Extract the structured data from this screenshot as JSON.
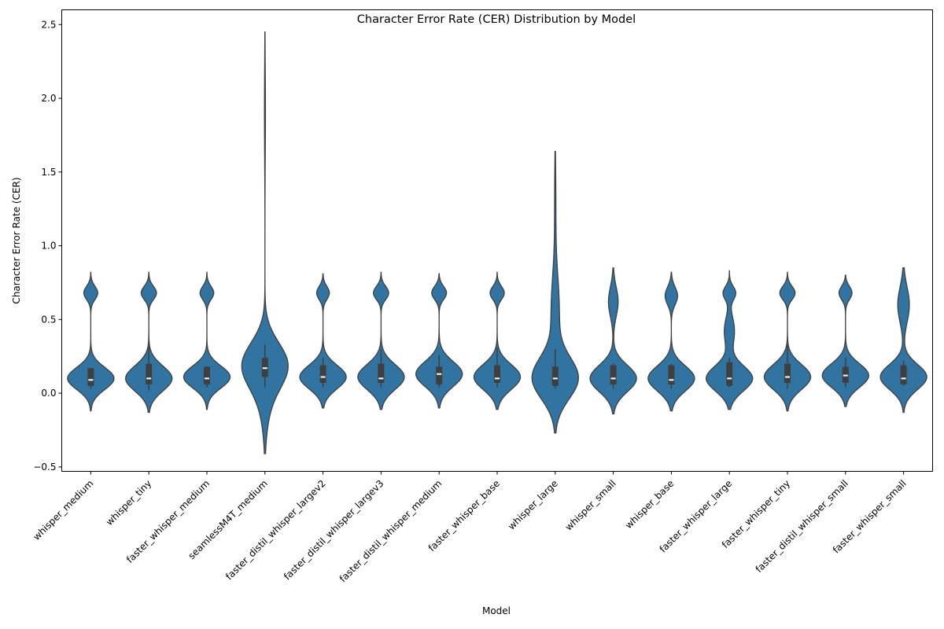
{
  "chart_data": {
    "type": "violin",
    "title": "Character Error Rate (CER) Distribution by Model",
    "xlabel": "Model",
    "ylabel": "Character Error Rate (CER)",
    "ylim": [
      -0.53,
      2.6
    ],
    "yticks": [
      -0.5,
      0.0,
      0.5,
      1.0,
      1.5,
      2.0,
      2.5
    ],
    "ytick_labels": [
      "−0.5",
      "0.0",
      "0.5",
      "1.0",
      "1.5",
      "2.0",
      "2.5"
    ],
    "grid": false,
    "colors": {
      "violin": "#3274a1",
      "edge": "#3f3f3f",
      "box": "#3f3f3f",
      "median": "#ffffff"
    },
    "categories": [
      "whisper_medium",
      "whisper_tiny",
      "faster_whisper_medium",
      "seamlessM4T_medium",
      "faster_distil_whisper_largev2",
      "faster_distil_whisper_largev3",
      "faster_distil_whisper_medium",
      "faster_whisper_base",
      "whisper_large",
      "whisper_small",
      "whisper_base",
      "faster_whisper_large",
      "faster_whisper_tiny",
      "faster_distil_whisper_small",
      "faster_whisper_small"
    ],
    "series": [
      {
        "min": -0.12,
        "max": 0.82,
        "q1": 0.05,
        "median": 0.09,
        "q3": 0.17,
        "wlow": 0.03,
        "whigh": 0.17,
        "modes": [
          [
            0.1,
            0.075,
            1.0
          ],
          [
            0.68,
            0.045,
            0.3
          ]
        ]
      },
      {
        "min": -0.13,
        "max": 0.82,
        "q1": 0.06,
        "median": 0.1,
        "q3": 0.2,
        "wlow": 0.02,
        "whigh": 0.31,
        "modes": [
          [
            0.1,
            0.085,
            0.85
          ],
          [
            0.68,
            0.045,
            0.28
          ]
        ]
      },
      {
        "min": -0.11,
        "max": 0.82,
        "q1": 0.06,
        "median": 0.1,
        "q3": 0.18,
        "wlow": 0.04,
        "whigh": 0.18,
        "modes": [
          [
            0.11,
            0.075,
            0.95
          ],
          [
            0.68,
            0.045,
            0.28
          ]
        ]
      },
      {
        "min": -0.41,
        "max": 2.45,
        "q1": 0.11,
        "median": 0.17,
        "q3": 0.24,
        "wlow": 0.04,
        "whigh": 0.33,
        "modes": [
          [
            0.2,
            0.15,
            0.5
          ],
          [
            0.0,
            0.2,
            0.12
          ],
          [
            1.9,
            0.3,
            0.012
          ]
        ]
      },
      {
        "min": -0.1,
        "max": 0.81,
        "q1": 0.07,
        "median": 0.11,
        "q3": 0.19,
        "wlow": 0.04,
        "whigh": 0.24,
        "modes": [
          [
            0.11,
            0.08,
            0.95
          ],
          [
            0.68,
            0.045,
            0.26
          ]
        ]
      },
      {
        "min": -0.11,
        "max": 0.82,
        "q1": 0.07,
        "median": 0.1,
        "q3": 0.2,
        "wlow": 0.04,
        "whigh": 0.3,
        "modes": [
          [
            0.11,
            0.085,
            0.82
          ],
          [
            0.68,
            0.045,
            0.27
          ]
        ]
      },
      {
        "min": -0.1,
        "max": 0.81,
        "q1": 0.06,
        "median": 0.13,
        "q3": 0.18,
        "wlow": 0.04,
        "whigh": 0.26,
        "modes": [
          [
            0.13,
            0.085,
            0.88
          ],
          [
            0.68,
            0.045,
            0.28
          ]
        ]
      },
      {
        "min": -0.11,
        "max": 0.82,
        "q1": 0.07,
        "median": 0.1,
        "q3": 0.19,
        "wlow": 0.04,
        "whigh": 0.31,
        "modes": [
          [
            0.11,
            0.085,
            0.88
          ],
          [
            0.68,
            0.045,
            0.27
          ]
        ]
      },
      {
        "min": -0.27,
        "max": 1.64,
        "q1": 0.05,
        "median": 0.1,
        "q3": 0.18,
        "wlow": 0.03,
        "whigh": 0.3,
        "modes": [
          [
            0.1,
            0.14,
            0.55
          ],
          [
            0.55,
            0.25,
            0.1
          ],
          [
            1.3,
            0.25,
            0.015
          ]
        ]
      },
      {
        "min": -0.14,
        "max": 0.85,
        "q1": 0.06,
        "median": 0.1,
        "q3": 0.19,
        "wlow": 0.03,
        "whigh": 0.2,
        "modes": [
          [
            0.1,
            0.09,
            0.82
          ],
          [
            0.62,
            0.1,
            0.17
          ]
        ]
      },
      {
        "min": -0.12,
        "max": 0.82,
        "q1": 0.06,
        "median": 0.09,
        "q3": 0.19,
        "wlow": 0.03,
        "whigh": 0.2,
        "modes": [
          [
            0.1,
            0.085,
            0.82
          ],
          [
            0.66,
            0.06,
            0.22
          ]
        ]
      },
      {
        "min": -0.11,
        "max": 0.83,
        "q1": 0.05,
        "median": 0.1,
        "q3": 0.21,
        "wlow": 0.04,
        "whigh": 0.24,
        "modes": [
          [
            0.1,
            0.085,
            0.82
          ],
          [
            0.42,
            0.1,
            0.18
          ],
          [
            0.68,
            0.045,
            0.22
          ]
        ]
      },
      {
        "min": -0.12,
        "max": 0.82,
        "q1": 0.07,
        "median": 0.11,
        "q3": 0.2,
        "wlow": 0.03,
        "whigh": 0.33,
        "modes": [
          [
            0.11,
            0.085,
            0.82
          ],
          [
            0.68,
            0.045,
            0.27
          ]
        ]
      },
      {
        "min": -0.09,
        "max": 0.8,
        "q1": 0.07,
        "median": 0.12,
        "q3": 0.18,
        "wlow": 0.04,
        "whigh": 0.24,
        "modes": [
          [
            0.12,
            0.08,
            1.0
          ],
          [
            0.68,
            0.045,
            0.28
          ]
        ]
      },
      {
        "min": -0.13,
        "max": 0.85,
        "q1": 0.06,
        "median": 0.1,
        "q3": 0.19,
        "wlow": 0.05,
        "whigh": 0.22,
        "modes": [
          [
            0.11,
            0.085,
            0.8
          ],
          [
            0.6,
            0.12,
            0.2
          ]
        ]
      }
    ]
  }
}
